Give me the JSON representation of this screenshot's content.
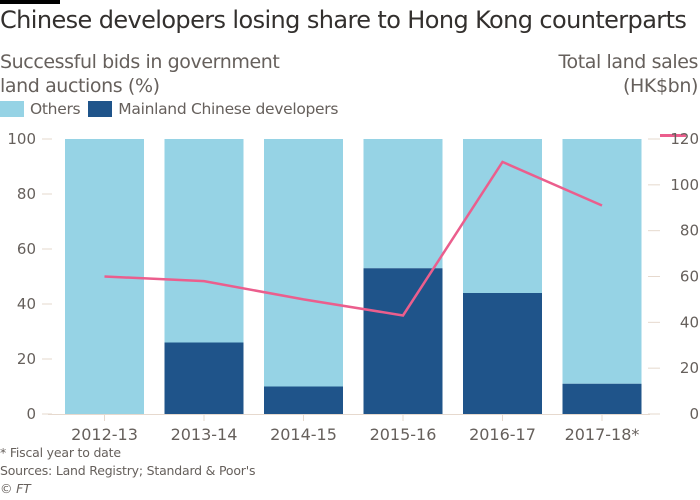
{
  "header": {
    "title": "Chinese developers losing share to Hong Kong counterparts",
    "left_axis_title_line1": "Successful bids in government",
    "left_axis_title_line2": "land auctions (%)",
    "right_axis_title_line1": "Total land sales",
    "right_axis_title_line2": "(HK$bn)"
  },
  "legend": [
    {
      "label": "Others",
      "color": "#96d3e5"
    },
    {
      "label": "Mainland Chinese developers",
      "color": "#1f548a"
    }
  ],
  "footer": {
    "note": "* Fiscal year to date",
    "sources": "Sources: Land Registry; Standard & Poor's",
    "copyright": "© FT"
  },
  "chart_data": {
    "type": "bar",
    "subtype": "stacked-bar-with-line-secondary-axis",
    "title": "Chinese developers losing share to Hong Kong counterparts",
    "categories": [
      "2012-13",
      "2013-14",
      "2014-15",
      "2015-16",
      "2016-17",
      "2017-18*"
    ],
    "series": [
      {
        "name": "Mainland Chinese developers",
        "type": "bar",
        "axis": "left",
        "color": "#1f548a",
        "values": [
          0,
          26,
          10,
          53,
          44,
          11
        ]
      },
      {
        "name": "Others",
        "type": "bar",
        "axis": "left",
        "color": "#96d3e5",
        "values": [
          100,
          74,
          90,
          47,
          56,
          89
        ]
      },
      {
        "name": "Total land sales (HK$bn)",
        "type": "line",
        "axis": "right",
        "color": "#eb5e8d",
        "values": [
          60,
          58,
          50,
          43,
          110,
          91
        ]
      }
    ],
    "ylabel": "Successful bids in government land auctions (%)",
    "ylim": [
      0,
      100
    ],
    "yticks": [
      0,
      20,
      40,
      60,
      80,
      100
    ],
    "y2label": "Total land sales (HK$bn)",
    "y2lim": [
      0,
      120
    ],
    "y2ticks": [
      0,
      20,
      40,
      60,
      80,
      100,
      120
    ],
    "grid": false,
    "legend_position": "top-left"
  }
}
